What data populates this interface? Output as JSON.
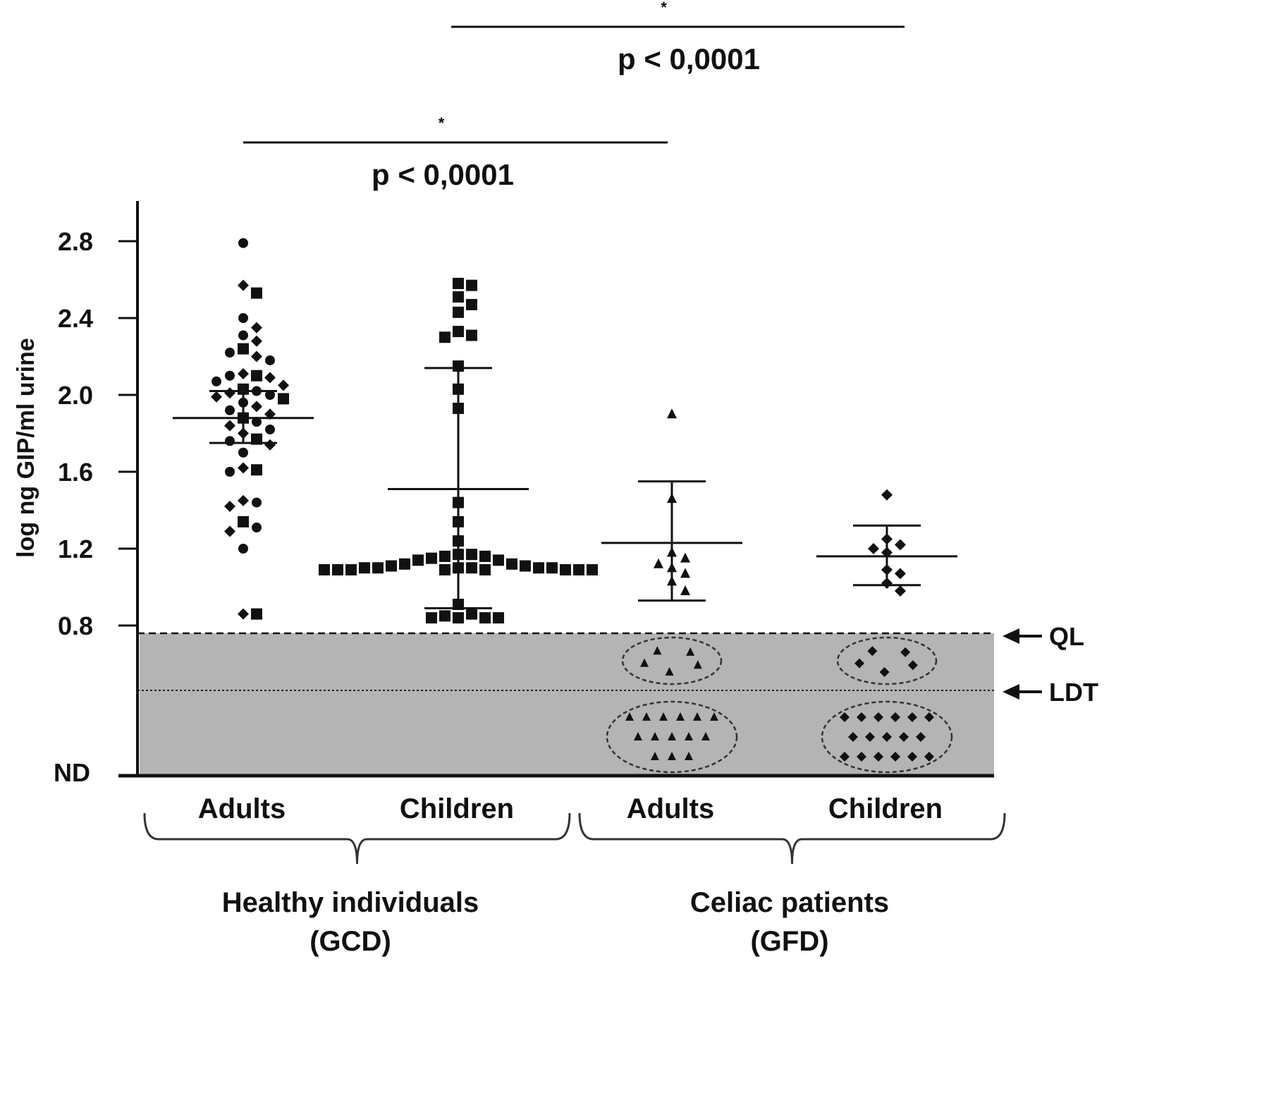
{
  "chart_data": {
    "type": "scatter",
    "title": "",
    "ylabel": "log ng GIP/ml urine",
    "ylim": [
      0.8,
      2.8
    ],
    "yticks": [
      "2.8",
      "2.4",
      "2.0",
      "1.6",
      "1.2",
      "0.8"
    ],
    "y_bottom_label": "ND",
    "categories": [
      "Adults",
      "Children",
      "Adults",
      "Children"
    ],
    "groups": [
      {
        "label": "Healthy individuals",
        "sub": "(GCD)"
      },
      {
        "label": "Celiac patients",
        "sub": "(GFD)"
      }
    ],
    "thresholds": [
      {
        "label": "QL",
        "style": "dashed"
      },
      {
        "label": "LDT",
        "style": "dotted"
      }
    ],
    "comparisons": [
      {
        "text": "p <  0,0001",
        "star": "*",
        "from": 0,
        "to": 2
      },
      {
        "text": "p <  0,0001",
        "star": "*",
        "from": 1,
        "to": 3
      }
    ],
    "below_ql_region_color": "#b4b4b4",
    "series": [
      {
        "name": "",
        "marker": "mixed",
        "mean": 1.88,
        "sd_upper": 2.02,
        "sd_lower": 1.75,
        "points": [
          2.79,
          2.57,
          2.53,
          2.4,
          2.35,
          2.31,
          2.28,
          2.24,
          2.22,
          2.2,
          2.18,
          2.11,
          2.1,
          2.1,
          2.09,
          2.07,
          2.05,
          2.03,
          2.02,
          2.01,
          2.0,
          1.99,
          1.98,
          1.96,
          1.94,
          1.92,
          1.9,
          1.88,
          1.86,
          1.84,
          1.82,
          1.8,
          1.77,
          1.76,
          1.74,
          1.7,
          1.62,
          1.61,
          1.6,
          1.45,
          1.44,
          1.42,
          1.34,
          1.31,
          1.29,
          1.2,
          0.86,
          0.86
        ]
      },
      {
        "name": "",
        "marker": "square",
        "mean": 1.51,
        "sd_upper": 2.14,
        "sd_lower": 0.89,
        "points": [
          2.58,
          2.57,
          2.51,
          2.47,
          2.43,
          2.33,
          2.31,
          2.3,
          2.15,
          2.03,
          1.93,
          1.44,
          1.34,
          1.24,
          1.17,
          1.17,
          1.16,
          1.15,
          1.14,
          1.12,
          1.11,
          1.1,
          1.1,
          1.1,
          1.09,
          1.09,
          1.09,
          1.09,
          1.09,
          1.09,
          1.09,
          1.09,
          1.1,
          1.1,
          1.1,
          1.11,
          1.12,
          1.14,
          1.16,
          0.91,
          0.86,
          0.85,
          0.84,
          0.84,
          0.84,
          0.84
        ]
      },
      {
        "name": "",
        "marker": "triangle",
        "mean": 1.23,
        "sd_upper": 1.55,
        "sd_lower": 0.93,
        "points": [
          1.9,
          1.46,
          1.18,
          1.15,
          1.12,
          1.1,
          1.07,
          1.03,
          0.98
        ],
        "below_ql_count": 5,
        "not_detected_count": 14
      },
      {
        "name": "",
        "marker": "diamond",
        "mean": 1.16,
        "sd_upper": 1.32,
        "sd_lower": 1.01,
        "points": [
          1.48,
          1.25,
          1.22,
          1.2,
          1.18,
          1.09,
          1.07,
          1.02,
          0.98
        ],
        "below_ql_count": 5,
        "not_detected_count": 17
      }
    ]
  }
}
